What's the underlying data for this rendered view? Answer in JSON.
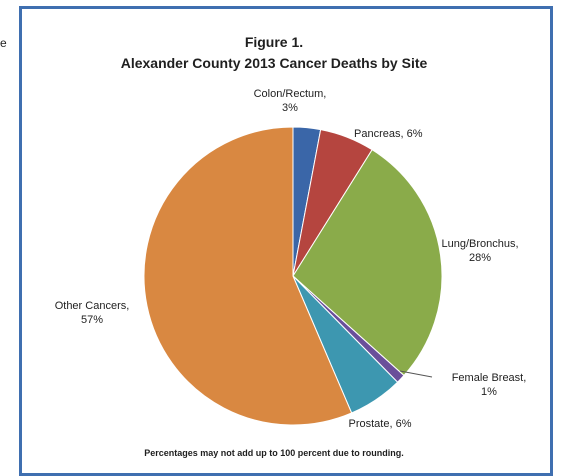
{
  "edge_text": "e",
  "chart_data": {
    "type": "pie",
    "title": "Figure 1.",
    "subtitle": "Alexander County 2013 Cancer Deaths by Site",
    "footnote": "Percentages may not add up to 100 percent due to rounding.",
    "slices": [
      {
        "label_lines": [
          "Colon/Rectum,",
          "3%"
        ],
        "value": 3,
        "color": "#3a66a8"
      },
      {
        "label_lines": [
          "Pancreas, 6%"
        ],
        "value": 6,
        "color": "#b5453f"
      },
      {
        "label_lines": [
          "Lung/Bronchus,",
          "28%"
        ],
        "value": 28,
        "color": "#8aab4a"
      },
      {
        "label_lines": [
          "Female  Breast,",
          "1%"
        ],
        "value": 1,
        "color": "#6a4f9a"
      },
      {
        "label_lines": [
          "Prostate, 6%"
        ],
        "value": 6,
        "color": "#3d97b0"
      },
      {
        "label_lines": [
          "Other Cancers,",
          "57%"
        ],
        "value": 57,
        "color": "#d98841"
      }
    ]
  }
}
